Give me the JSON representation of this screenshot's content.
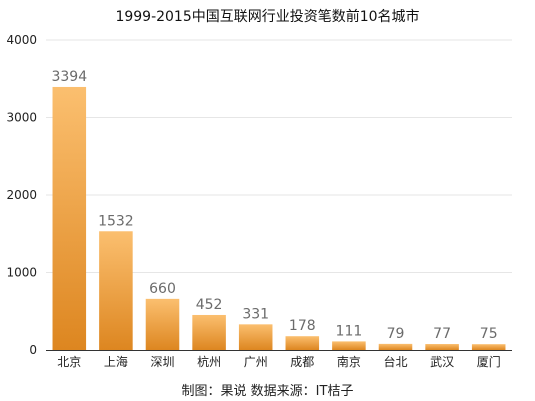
{
  "chart_data": {
    "type": "bar",
    "title": "1999-2015中国互联网行业投资笔数前10名城市",
    "categories": [
      "北京",
      "上海",
      "深圳",
      "杭州",
      "广州",
      "成都",
      "南京",
      "台北",
      "武汉",
      "厦门"
    ],
    "values": [
      3394,
      1532,
      660,
      452,
      331,
      178,
      111,
      79,
      77,
      75
    ],
    "xlabel": "",
    "ylabel": "",
    "ylim": [
      0,
      4000
    ],
    "yticks": [
      0,
      1000,
      2000,
      3000,
      4000
    ],
    "grid": true,
    "legend": "none",
    "bar_color_top": "#fbbf6f",
    "bar_color_bottom": "#dd8620",
    "data_label_color": "#6b6b6b"
  },
  "footer": "制图：果说 数据来源：IT桔子"
}
